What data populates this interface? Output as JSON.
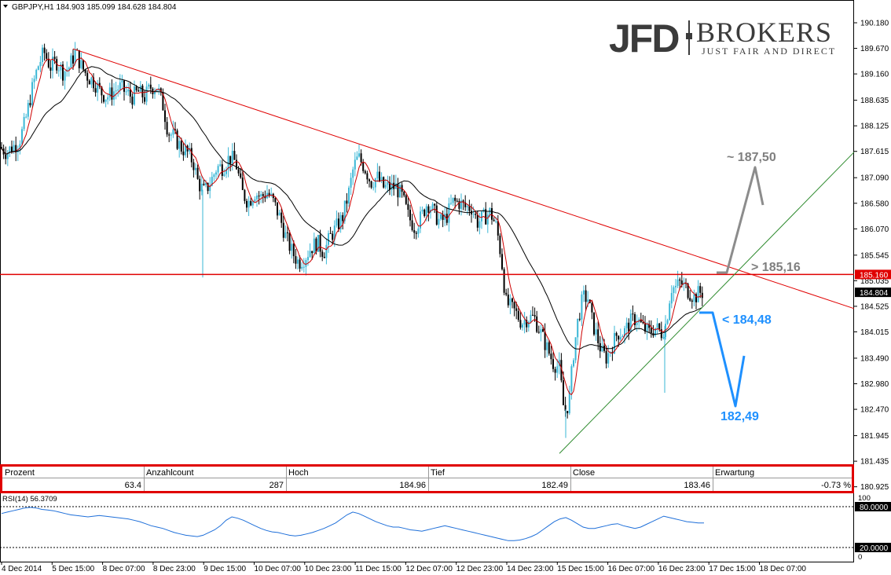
{
  "header": {
    "symbol_info": "GBPJPY,H1  184.903 185.099 184.628 184.804"
  },
  "logo": {
    "brand": "JFD",
    "brand2": "BROKERS",
    "tagline": "JUST FAIR AND DIRECT"
  },
  "chart_data": {
    "type": "candlestick",
    "symbol": "GBPJPY",
    "timeframe": "H1",
    "ohlc_header": {
      "open": 184.903,
      "high": 185.099,
      "low": 184.628,
      "close": 184.804
    },
    "ylim": [
      180.92,
      190.18
    ],
    "y_ticks": [
      "190.180",
      "189.670",
      "189.160",
      "188.635",
      "188.125",
      "187.615",
      "187.090",
      "186.580",
      "186.070",
      "185.545",
      "185.035",
      "184.525",
      "184.015",
      "183.490",
      "182.980",
      "182.470",
      "181.945",
      "181.435",
      "180.925"
    ],
    "x_ticks": [
      "4 Dec 2014",
      "5 Dec 15:00",
      "8 Dec 07:00",
      "8 Dec 23:00",
      "9 Dec 15:00",
      "10 Dec 07:00",
      "10 Dec 23:00",
      "11 Dec 15:00",
      "12 Dec 07:00",
      "12 Dec 23:00",
      "14 Dec 23:00",
      "15 Dec 15:00",
      "16 Dec 07:00",
      "16 Dec 23:00",
      "17 Dec 15:00",
      "18 Dec 07:00"
    ],
    "price_path": [
      [
        0,
        187.7
      ],
      [
        8,
        187.6
      ],
      [
        16,
        187.7
      ],
      [
        24,
        187.8
      ],
      [
        32,
        188.2
      ],
      [
        40,
        188.8
      ],
      [
        48,
        189.3
      ],
      [
        56,
        189.6
      ],
      [
        64,
        189.3
      ],
      [
        72,
        189.4
      ],
      [
        80,
        189.2
      ],
      [
        88,
        189.3
      ],
      [
        96,
        189.6
      ],
      [
        104,
        189.3
      ],
      [
        112,
        189.1
      ],
      [
        120,
        189.0
      ],
      [
        128,
        188.8
      ],
      [
        136,
        188.7
      ],
      [
        144,
        188.8
      ],
      [
        152,
        188.9
      ],
      [
        160,
        188.8
      ],
      [
        168,
        188.7
      ],
      [
        176,
        188.8
      ],
      [
        184,
        188.7
      ],
      [
        192,
        188.9
      ],
      [
        200,
        188.9
      ],
      [
        208,
        188.5
      ],
      [
        214,
        188.0
      ],
      [
        222,
        187.9
      ],
      [
        230,
        187.7
      ],
      [
        238,
        187.6
      ],
      [
        246,
        187.4
      ],
      [
        252,
        187.0
      ],
      [
        260,
        186.8
      ],
      [
        268,
        187.0
      ],
      [
        276,
        187.3
      ],
      [
        284,
        187.3
      ],
      [
        292,
        187.5
      ],
      [
        300,
        187.4
      ],
      [
        308,
        186.8
      ],
      [
        316,
        186.6
      ],
      [
        324,
        186.8
      ],
      [
        332,
        186.7
      ],
      [
        340,
        186.8
      ],
      [
        348,
        186.6
      ],
      [
        356,
        186.3
      ],
      [
        364,
        185.9
      ],
      [
        372,
        185.6
      ],
      [
        380,
        185.4
      ],
      [
        388,
        185.5
      ],
      [
        396,
        185.7
      ],
      [
        404,
        185.8
      ],
      [
        412,
        185.6
      ],
      [
        420,
        185.9
      ],
      [
        428,
        186.1
      ],
      [
        436,
        186.3
      ],
      [
        444,
        186.8
      ],
      [
        450,
        187.3
      ],
      [
        456,
        187.5
      ],
      [
        464,
        187.3
      ],
      [
        472,
        187.0
      ],
      [
        480,
        187.1
      ],
      [
        488,
        186.9
      ],
      [
        496,
        186.9
      ],
      [
        504,
        186.9
      ],
      [
        512,
        186.7
      ],
      [
        520,
        186.3
      ],
      [
        528,
        186.1
      ],
      [
        536,
        186.3
      ],
      [
        544,
        186.6
      ],
      [
        552,
        186.4
      ],
      [
        560,
        186.2
      ],
      [
        568,
        186.3
      ],
      [
        576,
        186.6
      ],
      [
        584,
        186.6
      ],
      [
        592,
        186.5
      ],
      [
        600,
        186.5
      ],
      [
        608,
        186.2
      ],
      [
        616,
        186.3
      ],
      [
        624,
        186.4
      ],
      [
        632,
        186.1
      ],
      [
        638,
        185.5
      ],
      [
        644,
        184.6
      ],
      [
        650,
        184.5
      ],
      [
        656,
        184.4
      ],
      [
        664,
        184.2
      ],
      [
        672,
        184.3
      ],
      [
        680,
        184.3
      ],
      [
        688,
        184.0
      ],
      [
        696,
        183.7
      ],
      [
        704,
        183.4
      ],
      [
        712,
        183.3
      ],
      [
        718,
        182.4
      ],
      [
        724,
        182.6
      ],
      [
        730,
        183.6
      ],
      [
        736,
        184.3
      ],
      [
        742,
        184.7
      ],
      [
        748,
        184.7
      ],
      [
        754,
        184.2
      ],
      [
        760,
        183.9
      ],
      [
        766,
        183.6
      ],
      [
        772,
        183.5
      ],
      [
        778,
        183.7
      ],
      [
        786,
        184.0
      ],
      [
        794,
        184.0
      ],
      [
        802,
        184.2
      ],
      [
        810,
        184.3
      ],
      [
        818,
        184.1
      ],
      [
        826,
        184.0
      ],
      [
        834,
        184.1
      ],
      [
        842,
        184.0
      ],
      [
        848,
        184.2
      ],
      [
        854,
        184.9
      ],
      [
        860,
        184.9
      ],
      [
        866,
        185.0
      ],
      [
        872,
        184.9
      ],
      [
        878,
        184.8
      ],
      [
        884,
        184.7
      ],
      [
        890,
        184.8
      ],
      [
        896,
        184.8
      ]
    ],
    "series": [
      {
        "name": "",
        "color": "#cc0000",
        "kind": "moving-average-fast"
      },
      {
        "name": "",
        "color": "#000000",
        "kind": "moving-average-slow"
      }
    ],
    "candle_colors": {
      "up": "#3ab7d6",
      "down": "#000000"
    },
    "lines": {
      "resistance_down": {
        "from": [
          "5 Dec 15:00",
          189.66
        ],
        "to_right_edge": 184.48,
        "color": "#e00000"
      },
      "horizontal": {
        "price": 185.16,
        "color": "#e00000"
      },
      "support_up": {
        "from": [
          "16 Dec 07:00",
          181.59
        ],
        "to_right_edge": 187.6,
        "color": "#2e8b2e"
      }
    },
    "current_price_label": "184.804",
    "horizontal_price_label": "185.160",
    "annotations": [
      {
        "text": "~ 187,50",
        "color": "#7f7f7f"
      },
      {
        "text": "> 185,16",
        "color": "#7f7f7f"
      },
      {
        "text": "< 184,48",
        "color": "#1e90ff"
      },
      {
        "text": "182,49",
        "color": "#1e90ff"
      }
    ],
    "stats_table": {
      "headers": [
        "Prozent",
        "Anzahlcount",
        "Hoch",
        "Tief",
        "Close",
        "Erwartung"
      ],
      "values": [
        "63.4",
        "287",
        "184.96",
        "182.49",
        "183.46",
        "-0.73 %"
      ]
    },
    "rsi": {
      "label": "RSI(14) 56.3709",
      "levels": [
        "100",
        "80.0000",
        "20.0000",
        "0"
      ],
      "color": "#1e6fd9",
      "values": [
        70,
        72,
        74,
        76,
        78,
        79,
        78,
        76,
        75,
        74,
        72,
        70,
        68,
        67,
        66,
        65,
        66,
        67,
        66,
        65,
        64,
        63,
        62,
        60,
        58,
        55,
        52,
        50,
        48,
        45,
        42,
        40,
        38,
        37,
        36,
        38,
        42,
        46,
        52,
        60,
        65,
        63,
        60,
        56,
        52,
        48,
        45,
        43,
        42,
        40,
        38,
        37,
        38,
        40,
        42,
        45,
        48,
        52,
        56,
        62,
        68,
        72,
        70,
        66,
        62,
        58,
        55,
        52,
        50,
        50,
        48,
        46,
        45,
        44,
        46,
        48,
        50,
        52,
        50,
        48,
        46,
        44,
        42,
        40,
        38,
        36,
        34,
        32,
        30,
        30,
        31,
        33,
        36,
        40,
        46,
        52,
        58,
        62,
        64,
        60,
        55,
        50,
        48,
        48,
        50,
        52,
        54,
        55,
        52,
        50,
        48,
        50,
        54,
        58,
        62,
        66,
        64,
        62,
        60,
        58,
        57,
        56,
        56
      ]
    }
  }
}
